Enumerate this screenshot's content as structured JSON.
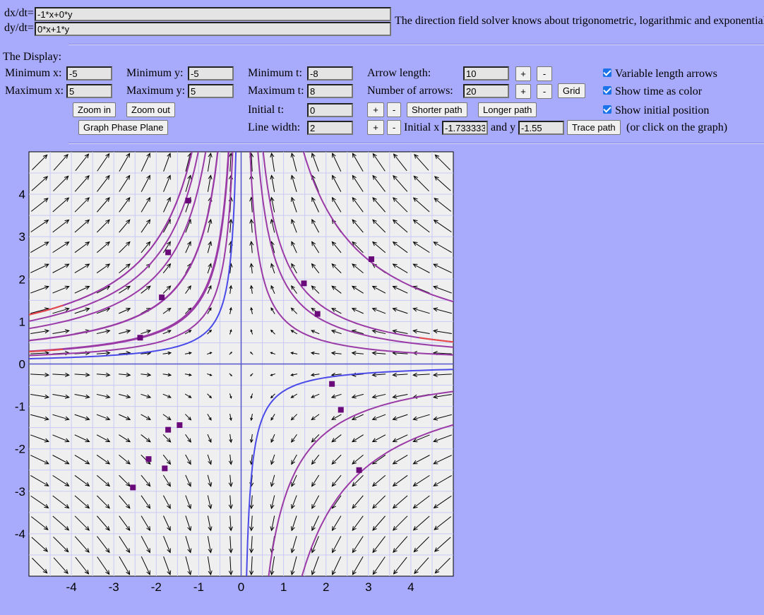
{
  "equations": {
    "dx_label": "dx/dt=",
    "dx_value": "-1*x+0*y",
    "dy_label": "dy/dt=",
    "dy_value": "0*x+1*y",
    "info": "The direction field solver knows about trigonometric, logarithmic and exponential"
  },
  "display": {
    "heading": "The Display:",
    "min_x_label": "Minimum x:",
    "min_x": "-5",
    "max_x_label": "Maximum x:",
    "max_x": "5",
    "min_y_label": "Minimum y:",
    "min_y": "-5",
    "max_y_label": "Maximum y:",
    "max_y": "5",
    "min_t_label": "Minimum t:",
    "min_t": "-8",
    "max_t_label": "Maximum t:",
    "max_t": "8",
    "initial_t_label": "Initial t:",
    "initial_t": "0",
    "line_width_label": "Line width:",
    "line_width": "2",
    "arrow_length_label": "Arrow length:",
    "arrow_length": "10",
    "num_arrows_label": "Number of arrows:",
    "num_arrows": "20",
    "plus": "+",
    "minus": "-",
    "grid": "Grid",
    "zoom_in": "Zoom in",
    "zoom_out": "Zoom out",
    "graph_phase_plane": "Graph Phase Plane",
    "shorter_path": "Shorter path",
    "longer_path": "Longer path",
    "initial_x_label": "Initial x",
    "initial_x": "-1.733333",
    "and_y_label": "and y",
    "initial_y": "-1.55",
    "trace_path": "Trace path",
    "click_hint": "(or click on the graph)",
    "variable_length": "Variable length arrows",
    "show_time_color": "Show time as color",
    "show_initial_position": "Show initial position"
  },
  "graph": {
    "x_ticks": [
      "-4",
      "-3",
      "-2",
      "-1",
      "0",
      "1",
      "2",
      "3",
      "4"
    ],
    "y_ticks": [
      "4",
      "3",
      "2",
      "1",
      "0",
      "-1",
      "-2",
      "-3",
      "-4"
    ],
    "xlim": [
      -5,
      5
    ],
    "ylim": [
      -5,
      5
    ],
    "colors": {
      "background": "#efefef",
      "grid": "#c9c9f5",
      "axis": "#5555cc",
      "arrow": "#000000",
      "path": "#9a3aa6",
      "path_end": "#e84a4a",
      "path_alt": "#4a4ae8",
      "marker": "#6a0a7a"
    },
    "trajectories": [
      {
        "c": -5.8,
        "t": "path"
      },
      {
        "c": -5.05,
        "t": "path"
      },
      {
        "c": -2.77,
        "t": "path"
      },
      {
        "c": -1.45,
        "t": "path"
      },
      {
        "c": -0.62,
        "t": "alt"
      },
      {
        "c": 2.6,
        "t": "path"
      },
      {
        "c": 1.98,
        "t": "path"
      },
      {
        "c": 7.35,
        "t": "path"
      },
      {
        "c": 1.06,
        "t": "path"
      },
      {
        "c": -3.24,
        "t": "path"
      },
      {
        "c": -7.17,
        "t": "path"
      },
      {
        "c": -0.64,
        "t": "alt"
      },
      {
        "c": -4.18,
        "t": "path"
      },
      {
        "c": -5.8,
        "t": "path"
      },
      {
        "c": -1.5,
        "t": "path"
      },
      {
        "c": -1.0,
        "t": "path"
      },
      {
        "c": -2.75,
        "t": "path"
      }
    ],
    "markers": [
      [
        -1.25,
        3.85
      ],
      [
        -1.72,
        2.63
      ],
      [
        -1.87,
        1.57
      ],
      [
        -2.38,
        0.62
      ],
      [
        1.48,
        1.9
      ],
      [
        1.8,
        1.18
      ],
      [
        3.07,
        2.47
      ],
      [
        2.14,
        -0.47
      ],
      [
        2.35,
        -1.08
      ],
      [
        2.78,
        -2.5
      ],
      [
        -2.55,
        -2.91
      ],
      [
        -2.18,
        -2.24
      ],
      [
        -1.8,
        -2.46
      ],
      [
        -1.72,
        -1.55
      ],
      [
        -1.45,
        -1.44
      ]
    ]
  }
}
